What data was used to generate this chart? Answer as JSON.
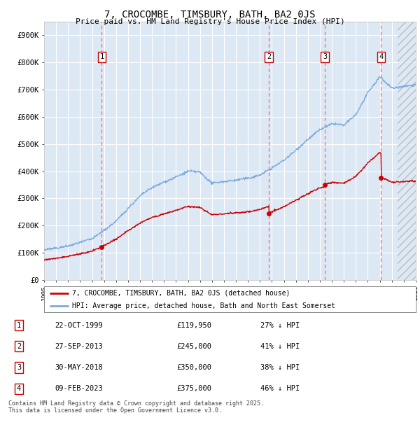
{
  "title": "7, CROCOMBE, TIMSBURY, BATH, BA2 0JS",
  "subtitle": "Price paid vs. HM Land Registry's House Price Index (HPI)",
  "ylim": [
    0,
    950000
  ],
  "yticks": [
    0,
    100000,
    200000,
    300000,
    400000,
    500000,
    600000,
    700000,
    800000,
    900000
  ],
  "ytick_labels": [
    "£0",
    "£100K",
    "£200K",
    "£300K",
    "£400K",
    "£500K",
    "£600K",
    "£700K",
    "£800K",
    "£900K"
  ],
  "plot_bg_color": "#dde8f5",
  "grid_color": "#ffffff",
  "sale_color": "#cc0000",
  "hpi_color": "#7aaadd",
  "dashed_line_color": "#ff6666",
  "sale_transactions": [
    {
      "date": 1999.81,
      "price": 119950,
      "label": "1"
    },
    {
      "date": 2013.74,
      "price": 245000,
      "label": "2"
    },
    {
      "date": 2018.41,
      "price": 350000,
      "label": "3"
    },
    {
      "date": 2023.11,
      "price": 375000,
      "label": "4"
    }
  ],
  "transaction_table": [
    {
      "num": "1",
      "date": "22-OCT-1999",
      "price": "£119,950",
      "hpi": "27% ↓ HPI"
    },
    {
      "num": "2",
      "date": "27-SEP-2013",
      "price": "£245,000",
      "hpi": "41% ↓ HPI"
    },
    {
      "num": "3",
      "date": "30-MAY-2018",
      "price": "£350,000",
      "hpi": "38% ↓ HPI"
    },
    {
      "num": "4",
      "date": "09-FEB-2023",
      "price": "£375,000",
      "hpi": "46% ↓ HPI"
    }
  ],
  "legend_line1": "7, CROCOMBE, TIMSBURY, BATH, BA2 0JS (detached house)",
  "legend_line2": "HPI: Average price, detached house, Bath and North East Somerset",
  "footer": "Contains HM Land Registry data © Crown copyright and database right 2025.\nThis data is licensed under the Open Government Licence v3.0.",
  "xmin": 1995,
  "xmax": 2026,
  "hpi_data": {
    "years": [
      1995,
      1996,
      1997,
      1998,
      1999,
      2000,
      2001,
      2002,
      2003,
      2004,
      2005,
      2006,
      2007,
      2008,
      2009,
      2010,
      2011,
      2012,
      2013,
      2014,
      2015,
      2016,
      2017,
      2018,
      2019,
      2020,
      2021,
      2022,
      2023,
      2024,
      2025,
      2026
    ],
    "values": [
      110000,
      118000,
      128000,
      140000,
      155000,
      185000,
      220000,
      265000,
      310000,
      340000,
      360000,
      380000,
      400000,
      395000,
      355000,
      360000,
      365000,
      370000,
      385000,
      410000,
      440000,
      480000,
      520000,
      555000,
      575000,
      570000,
      610000,
      690000,
      750000,
      710000,
      715000,
      720000
    ]
  }
}
